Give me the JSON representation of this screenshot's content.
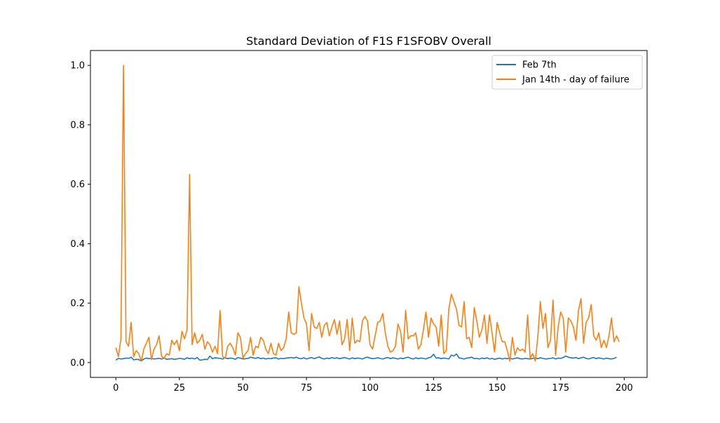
{
  "chart_data": {
    "type": "line",
    "title": "Standard Deviation of F1S F1SFOBV Overall",
    "xlabel": "",
    "ylabel": "",
    "xlim": [
      -10,
      209
    ],
    "ylim": [
      -0.05,
      1.05
    ],
    "xticks": [
      0,
      25,
      50,
      75,
      100,
      125,
      150,
      175,
      200
    ],
    "yticks": [
      0.0,
      0.2,
      0.4,
      0.6,
      0.8,
      1.0
    ],
    "xtick_labels": [
      "0",
      "25",
      "50",
      "75",
      "100",
      "125",
      "150",
      "175",
      "200"
    ],
    "ytick_labels": [
      "0.0",
      "0.2",
      "0.4",
      "0.6",
      "0.8",
      "1.0"
    ],
    "grid": false,
    "legend": "top-right",
    "series": [
      {
        "name": "Feb 7th",
        "color": "#1f77b4",
        "x_start": 0,
        "x_step": 1,
        "values": [
          0.008,
          0.014,
          0.012,
          0.013,
          0.015,
          0.014,
          0.018,
          0.009,
          0.011,
          0.01,
          0.005,
          0.012,
          0.015,
          0.013,
          0.014,
          0.012,
          0.013,
          0.014,
          0.012,
          0.015,
          0.011,
          0.012,
          0.013,
          0.011,
          0.012,
          0.014,
          0.013,
          0.011,
          0.016,
          0.013,
          0.015,
          0.012,
          0.017,
          0.008,
          0.009,
          0.011,
          0.01,
          0.022,
          0.013,
          0.016,
          0.015,
          0.014,
          0.012,
          0.016,
          0.013,
          0.015,
          0.014,
          0.011,
          0.017,
          0.015,
          0.012,
          0.013,
          0.014,
          0.018,
          0.016,
          0.014,
          0.017,
          0.013,
          0.015,
          0.012,
          0.014,
          0.013,
          0.015,
          0.016,
          0.012,
          0.014,
          0.013,
          0.015,
          0.016,
          0.017,
          0.015,
          0.018,
          0.014,
          0.013,
          0.016,
          0.012,
          0.015,
          0.017,
          0.013,
          0.016,
          0.019,
          0.014,
          0.012,
          0.015,
          0.013,
          0.017,
          0.014,
          0.016,
          0.013,
          0.015,
          0.017,
          0.014,
          0.012,
          0.016,
          0.013,
          0.015,
          0.014,
          0.012,
          0.016,
          0.018,
          0.015,
          0.013,
          0.014,
          0.016,
          0.014,
          0.012,
          0.015,
          0.017,
          0.013,
          0.016,
          0.014,
          0.012,
          0.015,
          0.013,
          0.016,
          0.018,
          0.014,
          0.012,
          0.016,
          0.013,
          0.015,
          0.014,
          0.012,
          0.016,
          0.018,
          0.028,
          0.015,
          0.016,
          0.013,
          0.015,
          0.014,
          0.012,
          0.025,
          0.022,
          0.029,
          0.016,
          0.014,
          0.012,
          0.015,
          0.016,
          0.018,
          0.013,
          0.014,
          0.012,
          0.015,
          0.013,
          0.016,
          0.012,
          0.014,
          0.011,
          0.013,
          0.015,
          0.012,
          0.014,
          0.013,
          0.015,
          0.012,
          0.014,
          0.016,
          0.013,
          0.012,
          0.014,
          0.013,
          0.012,
          0.014,
          0.015,
          0.013,
          0.016,
          0.014,
          0.012,
          0.013,
          0.014,
          0.016,
          0.012,
          0.015,
          0.014,
          0.017,
          0.022,
          0.018,
          0.016,
          0.015,
          0.017,
          0.013,
          0.016,
          0.018,
          0.014,
          0.012,
          0.015,
          0.017,
          0.013,
          0.016,
          0.014,
          0.012,
          0.015,
          0.013,
          0.012,
          0.014,
          0.018
        ]
      },
      {
        "name": "Jan 14th - day of failure",
        "color": "#ff7f0e",
        "x_start": 0,
        "x_step": 1,
        "values": [
          0.05,
          0.02,
          0.08,
          1.0,
          0.07,
          0.055,
          0.135,
          0.02,
          0.04,
          0.03,
          0.005,
          0.045,
          0.065,
          0.085,
          0.01,
          0.045,
          0.06,
          0.09,
          0.02,
          0.015,
          0.03,
          0.025,
          0.075,
          0.06,
          0.075,
          0.04,
          0.105,
          0.08,
          0.11,
          0.633,
          0.06,
          0.1,
          0.065,
          0.075,
          0.095,
          0.045,
          0.07,
          0.06,
          0.035,
          0.055,
          0.03,
          0.175,
          0.02,
          0.015,
          0.055,
          0.065,
          0.05,
          0.025,
          0.1,
          0.085,
          0.015,
          0.03,
          0.04,
          0.085,
          0.025,
          0.055,
          0.05,
          0.085,
          0.075,
          0.045,
          0.03,
          0.065,
          0.03,
          0.025,
          0.065,
          0.04,
          0.05,
          0.08,
          0.17,
          0.1,
          0.095,
          0.1,
          0.255,
          0.2,
          0.15,
          0.13,
          0.04,
          0.165,
          0.12,
          0.115,
          0.135,
          0.085,
          0.125,
          0.135,
          0.09,
          0.12,
          0.145,
          0.095,
          0.14,
          0.06,
          0.08,
          0.145,
          0.04,
          0.15,
          0.065,
          0.075,
          0.07,
          0.14,
          0.155,
          0.14,
          0.06,
          0.045,
          0.09,
          0.135,
          0.14,
          0.165,
          0.1,
          0.055,
          0.035,
          0.04,
          0.055,
          0.13,
          0.105,
          0.035,
          0.175,
          0.08,
          0.09,
          0.09,
          0.1,
          0.045,
          0.06,
          0.11,
          0.17,
          0.085,
          0.15,
          0.13,
          0.12,
          0.055,
          0.16,
          0.03,
          0.04,
          0.18,
          0.23,
          0.205,
          0.18,
          0.125,
          0.12,
          0.205,
          0.08,
          0.085,
          0.05,
          0.185,
          0.14,
          0.085,
          0.11,
          0.16,
          0.065,
          0.16,
          0.1,
          0.035,
          0.135,
          0.1,
          0.07,
          0.07,
          0.04,
          0.005,
          0.085,
          0.025,
          0.05,
          0.04,
          0.045,
          0.035,
          0.16,
          0.015,
          0.03,
          0.005,
          0.085,
          0.205,
          0.115,
          0.165,
          0.05,
          0.075,
          0.21,
          0.025,
          0.12,
          0.17,
          0.15,
          0.035,
          0.15,
          0.14,
          0.12,
          0.075,
          0.175,
          0.215,
          0.065,
          0.135,
          0.15,
          0.195,
          0.09,
          0.075,
          0.1,
          0.05,
          0.075,
          0.05,
          0.09,
          0.15,
          0.07,
          0.09,
          0.07
        ]
      }
    ]
  }
}
